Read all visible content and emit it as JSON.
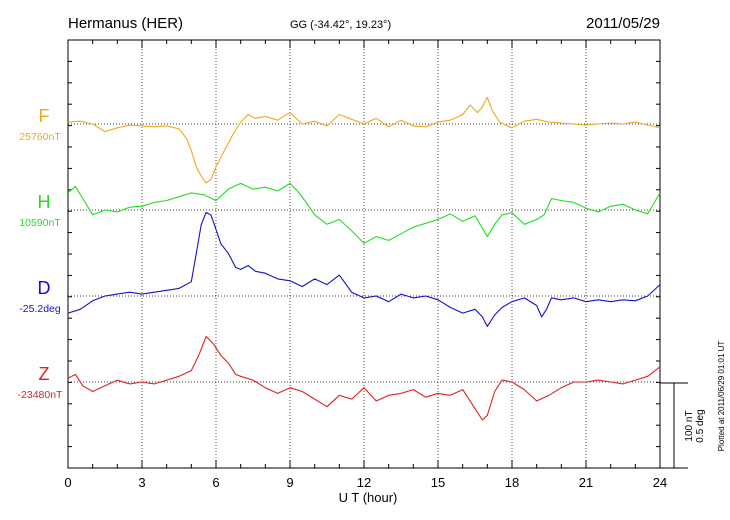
{
  "header": {
    "station": "Hermanus (HER)",
    "coords": "GG (-34.42°,  19.23°)",
    "date": "2011/05/29"
  },
  "chart_data": {
    "type": "line",
    "xlabel": "U T (hour)",
    "xlim": [
      0,
      24
    ],
    "x_ticks": [
      "0",
      "3",
      "6",
      "9",
      "12",
      "15",
      "18",
      "21",
      "24"
    ],
    "scale_label_1": "100 nT",
    "scale_label_2": "0.5 deg",
    "plotted_note": "Plotted at 2011/06/29 01:01 UT",
    "grid": true,
    "series": [
      {
        "name": "F",
        "baseline_label": "25760nT",
        "color": "#f0a81c",
        "x": [
          0,
          0.5,
          1,
          1.5,
          2,
          2.5,
          3,
          3.5,
          4,
          4.5,
          4.8,
          5,
          5.2,
          5.4,
          5.6,
          5.8,
          6,
          6.2,
          6.4,
          6.6,
          6.8,
          7,
          7.3,
          7.6,
          8,
          8.5,
          9,
          9.5,
          10,
          10.5,
          11,
          11.5,
          12,
          12.5,
          13,
          13.5,
          14,
          14.5,
          15,
          15.5,
          16,
          16.3,
          16.6,
          16.8,
          17,
          17.2,
          17.5,
          17.8,
          18,
          18.5,
          19,
          19.5,
          20,
          20.5,
          21,
          21.5,
          22,
          22.5,
          23,
          23.5,
          24
        ],
        "y": [
          2,
          3,
          0,
          -8,
          -4,
          -1,
          -2,
          -3,
          -2,
          -5,
          -15,
          -28,
          -45,
          -55,
          -62,
          -58,
          -45,
          -35,
          -25,
          -15,
          -6,
          2,
          10,
          6,
          8,
          4,
          12,
          0,
          3,
          -2,
          10,
          5,
          0,
          6,
          -3,
          4,
          -2,
          -3,
          2,
          4,
          10,
          20,
          12,
          18,
          28,
          14,
          2,
          -2,
          -4,
          3,
          5,
          2,
          1,
          0,
          -1,
          0,
          1,
          0,
          2,
          -1,
          -4
        ]
      },
      {
        "name": "H",
        "baseline_label": "10590nT",
        "color": "#22dd22",
        "x": [
          0,
          0.3,
          0.6,
          1,
          1.5,
          2,
          2.5,
          3,
          3.5,
          4,
          4.5,
          5,
          5.5,
          6,
          6.5,
          7,
          7.5,
          8,
          8.5,
          9,
          9.3,
          9.6,
          10,
          10.5,
          11,
          11.5,
          12,
          12.5,
          13,
          13.5,
          14,
          14.5,
          15,
          15.5,
          16,
          16.5,
          17,
          17.3,
          17.6,
          18,
          18.5,
          19,
          19.3,
          19.6,
          20,
          20.5,
          21,
          21.5,
          22,
          22.5,
          23,
          23.5,
          24
        ],
        "y": [
          18,
          25,
          12,
          -5,
          0,
          -2,
          3,
          4,
          8,
          10,
          14,
          18,
          16,
          10,
          22,
          28,
          22,
          24,
          20,
          28,
          20,
          10,
          -5,
          -15,
          -10,
          -22,
          -35,
          -28,
          -32,
          -25,
          -18,
          -14,
          -10,
          -4,
          -12,
          -6,
          -28,
          -15,
          -5,
          -3,
          -15,
          -10,
          -5,
          12,
          10,
          8,
          2,
          -2,
          4,
          6,
          0,
          -4,
          18
        ]
      },
      {
        "name": "D",
        "baseline_label": "-25.2deg",
        "color": "#1111cc",
        "x": [
          0,
          0.5,
          1,
          1.5,
          2,
          2.5,
          3,
          3.5,
          4,
          4.5,
          5,
          5.2,
          5.4,
          5.6,
          5.8,
          6,
          6.2,
          6.5,
          6.8,
          7,
          7.3,
          7.6,
          8,
          8.5,
          9,
          9.5,
          10,
          10.5,
          11,
          11.5,
          12,
          12.5,
          13,
          13.5,
          14,
          14.5,
          15,
          15.5,
          16,
          16.5,
          16.8,
          17,
          17.3,
          17.6,
          18,
          18.5,
          19,
          19.2,
          19.4,
          19.6,
          20,
          20.5,
          21,
          21.5,
          22,
          22.5,
          23,
          23.5,
          24
        ],
        "y": [
          -18,
          -14,
          -5,
          0,
          2,
          4,
          2,
          4,
          6,
          8,
          15,
          45,
          75,
          88,
          85,
          70,
          55,
          45,
          30,
          28,
          32,
          26,
          24,
          18,
          16,
          10,
          18,
          12,
          22,
          4,
          -2,
          0,
          -6,
          2,
          -2,
          0,
          -4,
          -12,
          -18,
          -14,
          -22,
          -32,
          -20,
          -12,
          -6,
          -2,
          -10,
          -22,
          -14,
          -2,
          -4,
          -2,
          -6,
          -4,
          -6,
          -4,
          -5,
          0,
          12
        ]
      },
      {
        "name": "Z",
        "baseline_label": "-23480nT",
        "color": "#dd2222",
        "x": [
          0,
          0.3,
          0.6,
          1,
          1.5,
          2,
          2.5,
          3,
          3.5,
          4,
          4.5,
          5,
          5.3,
          5.6,
          5.9,
          6.2,
          6.5,
          6.8,
          7,
          7.5,
          8,
          8.5,
          9,
          9.5,
          10,
          10.5,
          11,
          11.5,
          12,
          12.5,
          13,
          13.5,
          14,
          14.5,
          15,
          15.5,
          16,
          16.5,
          16.8,
          17,
          17.3,
          17.6,
          18,
          18.5,
          19,
          19.5,
          20,
          20.5,
          21,
          21.5,
          22,
          22.5,
          23,
          23.5,
          24
        ],
        "y": [
          4,
          8,
          -4,
          -10,
          -4,
          2,
          -2,
          0,
          -2,
          2,
          6,
          12,
          28,
          48,
          40,
          28,
          20,
          8,
          6,
          2,
          -6,
          -12,
          -6,
          -10,
          -18,
          -26,
          -14,
          -18,
          -6,
          -20,
          -14,
          -12,
          -8,
          -16,
          -12,
          -14,
          -8,
          -28,
          -40,
          -35,
          -10,
          2,
          0,
          -8,
          -20,
          -14,
          -6,
          0,
          0,
          2,
          0,
          -2,
          2,
          6,
          16
        ]
      }
    ]
  }
}
